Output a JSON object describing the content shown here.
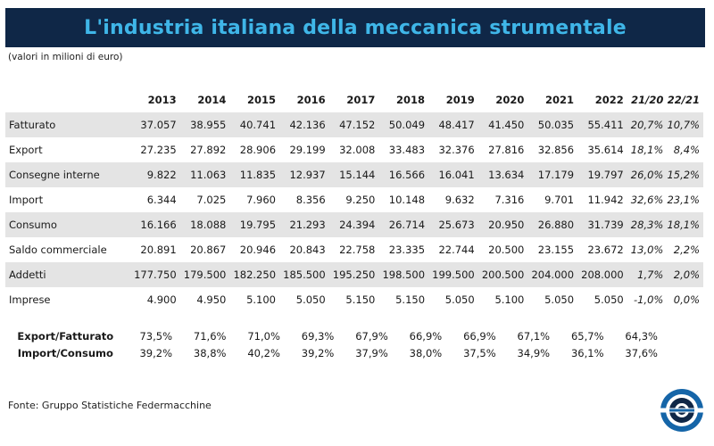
{
  "header": {
    "title": "L'industria italiana della meccanica strumentale",
    "subtitle": "(valori in milioni di euro)"
  },
  "table": {
    "columns": [
      "2013",
      "2014",
      "2015",
      "2016",
      "2017",
      "2018",
      "2019",
      "2020",
      "2021",
      "2022",
      "21/20",
      "22/21"
    ],
    "rows": [
      {
        "label": "Fatturato",
        "values": [
          "37.057",
          "38.955",
          "40.741",
          "42.136",
          "47.152",
          "50.049",
          "48.417",
          "41.450",
          "50.035",
          "55.411"
        ],
        "changes": [
          "20,7%",
          "10,7%"
        ]
      },
      {
        "label": "Export",
        "values": [
          "27.235",
          "27.892",
          "28.906",
          "29.199",
          "32.008",
          "33.483",
          "32.376",
          "27.816",
          "32.856",
          "35.614"
        ],
        "changes": [
          "18,1%",
          "8,4%"
        ]
      },
      {
        "label": "Consegne interne",
        "values": [
          "9.822",
          "11.063",
          "11.835",
          "12.937",
          "15.144",
          "16.566",
          "16.041",
          "13.634",
          "17.179",
          "19.797"
        ],
        "changes": [
          "26,0%",
          "15,2%"
        ]
      },
      {
        "label": "Import",
        "values": [
          "6.344",
          "7.025",
          "7.960",
          "8.356",
          "9.250",
          "10.148",
          "9.632",
          "7.316",
          "9.701",
          "11.942"
        ],
        "changes": [
          "32,6%",
          "23,1%"
        ]
      },
      {
        "label": "Consumo",
        "values": [
          "16.166",
          "18.088",
          "19.795",
          "21.293",
          "24.394",
          "26.714",
          "25.673",
          "20.950",
          "26.880",
          "31.739"
        ],
        "changes": [
          "28,3%",
          "18,1%"
        ]
      },
      {
        "label": "Saldo commerciale",
        "values": [
          "20.891",
          "20.867",
          "20.946",
          "20.843",
          "22.758",
          "23.335",
          "22.744",
          "20.500",
          "23.155",
          "23.672"
        ],
        "changes": [
          "13,0%",
          "2,2%"
        ]
      },
      {
        "label": "Addetti",
        "values": [
          "177.750",
          "179.500",
          "182.250",
          "185.500",
          "195.250",
          "198.500",
          "199.500",
          "200.500",
          "204.000",
          "208.000"
        ],
        "changes": [
          "1,7%",
          "2,0%"
        ]
      },
      {
        "label": "Imprese",
        "values": [
          "4.900",
          "4.950",
          "5.100",
          "5.050",
          "5.150",
          "5.150",
          "5.050",
          "5.100",
          "5.050",
          "5.050"
        ],
        "changes": [
          "-1,0%",
          "0,0%"
        ]
      }
    ]
  },
  "ratios": [
    {
      "label": "Export/Fatturato",
      "values": [
        "73,5%",
        "71,6%",
        "71,0%",
        "69,3%",
        "67,9%",
        "66,9%",
        "66,9%",
        "67,1%",
        "65,7%",
        "64,3%"
      ]
    },
    {
      "label": "Import/Consumo",
      "values": [
        "39,2%",
        "38,8%",
        "40,2%",
        "39,2%",
        "37,9%",
        "38,0%",
        "37,5%",
        "34,9%",
        "36,1%",
        "37,6%"
      ]
    }
  ],
  "source": "Fonte: Gruppo Statistiche Federmacchine",
  "colors": {
    "title_bg": "#0f2747",
    "title_text": "#3fb6e8",
    "row_shade": "#e4e4e4",
    "logo_blue": "#1565a8",
    "logo_dark": "#0f2747"
  },
  "logo": {
    "icon": "federmacchine-logo-icon"
  }
}
